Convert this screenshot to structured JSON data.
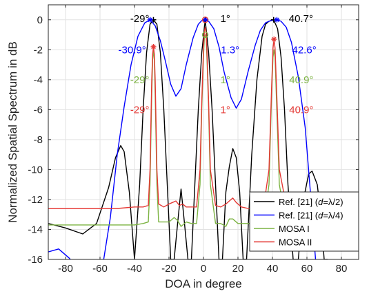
{
  "chart_data": {
    "type": "line",
    "xlabel": "DOA in degree",
    "ylabel": "Normalized Spatial Spectrum in dB",
    "xlim": [
      -90,
      90
    ],
    "ylim": [
      -16,
      1
    ],
    "xticks": [
      -80,
      -60,
      -40,
      -20,
      0,
      20,
      40,
      60,
      80
    ],
    "yticks": [
      0,
      -2,
      -4,
      -6,
      -8,
      -10,
      -12,
      -14,
      -16
    ],
    "grid": true,
    "legend_position": "lower-right",
    "series": [
      {
        "name": "Ref. [21] (d=λ/2)",
        "legend_parts": [
          "Ref. [21] (",
          "d",
          "=λ/2)"
        ],
        "color": "#000000",
        "x": [
          -90,
          -80,
          -70,
          -62,
          -55,
          -51,
          -48,
          -46,
          -43,
          -40,
          -37,
          -35,
          -33,
          -31,
          -29,
          -27,
          -25,
          -23,
          -21,
          -19,
          -17,
          -15,
          -13,
          -11,
          -9,
          -7,
          -5,
          -3,
          -1,
          1,
          3,
          5,
          7,
          9,
          11,
          13,
          15,
          17,
          19,
          21,
          23,
          25,
          28,
          31,
          34,
          36,
          38,
          40.7,
          43,
          45,
          47,
          49,
          52,
          55,
          58,
          61,
          63,
          66,
          68,
          70,
          72
        ],
        "y": [
          -13.6,
          -13.9,
          -14.3,
          -13.6,
          -11.2,
          -9.2,
          -8.4,
          -8.8,
          -11.5,
          -16,
          -11,
          -6,
          -2.2,
          -0.3,
          0,
          -0.3,
          -2.2,
          -6,
          -11,
          -16,
          -16,
          -13.6,
          -11.3,
          -13.6,
          -16,
          -16,
          -11,
          -6,
          -2.2,
          0,
          -2.2,
          -6,
          -11,
          -16,
          -16,
          -11.5,
          -9.8,
          -8.6,
          -9.2,
          -11.5,
          -16,
          -16,
          -9,
          -4,
          -1.1,
          -0.3,
          -0.1,
          0,
          -0.6,
          -2.5,
          -6,
          -11,
          -16,
          -16,
          -12,
          -10.3,
          -10.1,
          -11,
          -13,
          -16,
          -16
        ]
      },
      {
        "name": "Ref. [21] (d=λ/4)",
        "legend_parts": [
          "Ref. [21] (",
          "d",
          "=λ/4)"
        ],
        "color": "#0000ff",
        "x": [
          -90,
          -84,
          -78,
          -74,
          -70,
          -67,
          -64,
          -61,
          -58,
          -54,
          -50,
          -46,
          -42,
          -38,
          -34,
          -30.9,
          -28,
          -25,
          -22,
          -19,
          -16,
          -13,
          -10,
          -6,
          -3,
          -1,
          1.3,
          3,
          6,
          9,
          12,
          16,
          19,
          22,
          26,
          30,
          33,
          36,
          39,
          42.6,
          45,
          48,
          51,
          55,
          59,
          62,
          65,
          68,
          70
        ],
        "y": [
          -15.5,
          -15.3,
          -15.9,
          -16.4,
          -16.5,
          -16.4,
          -16.5,
          -16.1,
          -16.1,
          -13.2,
          -9,
          -5.8,
          -3,
          -1.1,
          -0.2,
          0,
          -0.4,
          -1.4,
          -2.8,
          -4.3,
          -5.1,
          -4.6,
          -3,
          -1.2,
          -0.3,
          -0.05,
          0,
          -0.1,
          -0.6,
          -1.8,
          -3.5,
          -5.2,
          -5.9,
          -5.3,
          -3.4,
          -1.7,
          -0.7,
          -0.2,
          -0.05,
          0,
          -0.1,
          -0.5,
          -1.5,
          -3.8,
          -7.2,
          -11.5,
          -16,
          -16.5,
          -16.5
        ]
      },
      {
        "name": "MOSA I",
        "color": "#7cb342",
        "x": [
          -90,
          -80,
          -70,
          -60,
          -50,
          -40,
          -35,
          -32,
          -31,
          -30,
          -29.5,
          -29,
          -28.5,
          -28,
          -27,
          -26,
          -23,
          -20,
          -17,
          -15,
          -13,
          -10,
          -7,
          -4,
          -2,
          -1,
          0,
          0.5,
          1,
          1.5,
          2,
          3,
          4,
          7,
          10,
          13,
          15,
          17,
          20,
          25,
          30,
          35,
          38,
          39.5,
          40.3,
          40.9,
          41.5,
          42.5,
          44,
          48,
          55,
          62,
          70,
          80,
          90
        ],
        "y": [
          -13.7,
          -13.7,
          -13.7,
          -13.7,
          -13.7,
          -13.7,
          -13.6,
          -13.5,
          -11,
          -5,
          -2.7,
          -2,
          -2.7,
          -5,
          -11,
          -13.5,
          -13.5,
          -13.5,
          -13.2,
          -13.4,
          -13.8,
          -13.5,
          -13.6,
          -13.6,
          -11,
          -6,
          -2.5,
          -1.2,
          -1,
          -1.2,
          -2.5,
          -6,
          -11,
          -13.6,
          -13.6,
          -13.8,
          -13.3,
          -13.3,
          -13.6,
          -13.6,
          -13.6,
          -13.5,
          -11,
          -5,
          -2.5,
          -2,
          -2.5,
          -6,
          -11,
          -13.6,
          -13.6,
          -13.6,
          -13.6,
          -13.6,
          -13.5
        ]
      },
      {
        "name": "MOSA II",
        "color": "#e53935",
        "x": [
          -90,
          -80,
          -70,
          -60,
          -50,
          -40,
          -35,
          -32,
          -31,
          -30,
          -29.5,
          -29,
          -28.5,
          -28,
          -27,
          -26,
          -23,
          -20,
          -18,
          -16,
          -14,
          -12,
          -10,
          -7,
          -4,
          -2,
          -1,
          0,
          0.5,
          1,
          1.5,
          2,
          3,
          4,
          7,
          10,
          13,
          15,
          17,
          19,
          22,
          26,
          30,
          35,
          38,
          39.5,
          40.3,
          40.9,
          41.5,
          42.5,
          44,
          48,
          55,
          62,
          70,
          80,
          90
        ],
        "y": [
          -12.6,
          -12.6,
          -12.6,
          -12.6,
          -12.6,
          -12.5,
          -12.5,
          -12.4,
          -10,
          -4,
          -2.3,
          -1.8,
          -2.3,
          -4,
          -10,
          -12.3,
          -12.5,
          -12.3,
          -12.2,
          -12.1,
          -12.4,
          -12.3,
          -12.5,
          -12.5,
          -12.5,
          -10,
          -5.5,
          -2,
          -0.8,
          -0.5,
          -0.8,
          -2,
          -5.5,
          -10,
          -12.4,
          -12.5,
          -12.3,
          -12.1,
          -11.9,
          -12.2,
          -12.5,
          -12.6,
          -12.5,
          -12.4,
          -10,
          -4.5,
          -1.9,
          -1.3,
          -1.9,
          -5,
          -10,
          -12.4,
          -12.5,
          -12.5,
          -12.5,
          -12.5,
          -12.5
        ]
      }
    ],
    "markers": [
      {
        "series": 0,
        "symbol": "plus",
        "x": -29,
        "y": 0,
        "color": "#000000"
      },
      {
        "series": 0,
        "symbol": "plus",
        "x": 1,
        "y": 0,
        "color": "#000000"
      },
      {
        "series": 0,
        "symbol": "plus",
        "x": 40.7,
        "y": 0,
        "color": "#000000"
      },
      {
        "series": 1,
        "symbol": "star",
        "x": -30.9,
        "y": 0,
        "color": "#0000ff"
      },
      {
        "series": 1,
        "symbol": "star",
        "x": 1.3,
        "y": 0,
        "color": "#0000ff"
      },
      {
        "series": 1,
        "symbol": "star",
        "x": 42.6,
        "y": 0,
        "color": "#0000ff"
      },
      {
        "series": 2,
        "symbol": "circle",
        "x": 1,
        "y": -1,
        "color": "#7cb342"
      },
      {
        "series": 3,
        "symbol": "circle",
        "x": 1,
        "y": 0,
        "color": "#e53935"
      },
      {
        "series": 3,
        "symbol": "star",
        "x": -29,
        "y": -1.8,
        "color": "#e53935"
      },
      {
        "series": 3,
        "symbol": "star",
        "x": 40.9,
        "y": -1.3,
        "color": "#e53935"
      }
    ],
    "annotations": [
      {
        "text": "-29°",
        "x": -29,
        "row": 0,
        "color": "#000000",
        "side": "left"
      },
      {
        "text": "1°",
        "x": 1,
        "row": 0,
        "color": "#000000",
        "side": "right"
      },
      {
        "text": "40.7°",
        "x": 40.7,
        "row": 0,
        "color": "#000000",
        "side": "right"
      },
      {
        "text": "-30.9°",
        "x": -30.9,
        "row": 1,
        "color": "#0000ff",
        "side": "left"
      },
      {
        "text": "1.3°",
        "x": 1.3,
        "row": 1,
        "color": "#0000ff",
        "side": "right"
      },
      {
        "text": "42.6°",
        "x": 42.6,
        "row": 1,
        "color": "#0000ff",
        "side": "right"
      },
      {
        "text": "-29°",
        "x": -29,
        "row": 2,
        "color": "#7cb342",
        "side": "left"
      },
      {
        "text": "1°",
        "x": 1,
        "row": 2,
        "color": "#7cb342",
        "side": "right"
      },
      {
        "text": "40.9°",
        "x": 40.9,
        "row": 2,
        "color": "#7cb342",
        "side": "right"
      },
      {
        "text": "-29°",
        "x": -29,
        "row": 3,
        "color": "#e53935",
        "side": "left"
      },
      {
        "text": "1°",
        "x": 1,
        "row": 3,
        "color": "#e53935",
        "side": "right"
      },
      {
        "text": "40.9°",
        "x": 40.9,
        "row": 3,
        "color": "#e53935",
        "side": "right"
      }
    ]
  }
}
